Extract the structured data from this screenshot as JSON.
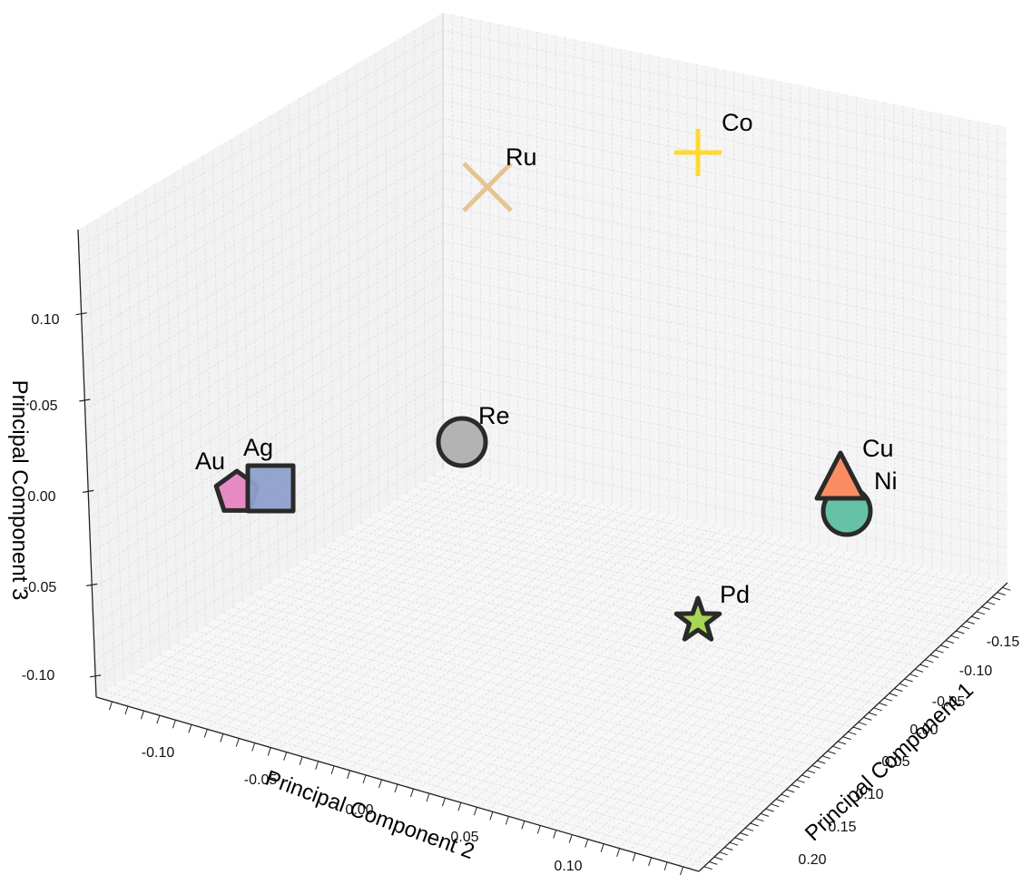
{
  "chart_data": {
    "type": "scatter",
    "projection": "3d",
    "xlabel": "Principal Component 1",
    "ylabel": "Principal Component 2",
    "zlabel": "Principal Component 3",
    "grid": true,
    "xticks": [
      "-0.15",
      "-0.10",
      "-0.05",
      "0.00",
      "0.05",
      "0.10",
      "0.15",
      "0.20"
    ],
    "yticks": [
      "-0.10",
      "-0.05",
      "0.00",
      "0.05",
      "0.10"
    ],
    "zticks": [
      "-0.10",
      "-0.05",
      "0.00",
      "0.05",
      "0.10"
    ],
    "points": [
      {
        "label": "Au",
        "marker": "pentagon",
        "color": "#e78ac3",
        "pc1": 0.04,
        "pc2": -0.13,
        "pc3": 0.0
      },
      {
        "label": "Ag",
        "marker": "square",
        "color": "#8da0cb",
        "pc1": 0.02,
        "pc2": -0.12,
        "pc3": 0.01
      },
      {
        "label": "Re",
        "marker": "circle",
        "color": "#b3b3b3",
        "pc1": -0.03,
        "pc2": -0.05,
        "pc3": 0.05
      },
      {
        "label": "Ru",
        "marker": "x",
        "color": "#e5c494",
        "pc1": -0.08,
        "pc2": -0.06,
        "pc3": 0.14
      },
      {
        "label": "Co",
        "marker": "plus",
        "color": "#ffd92f",
        "pc1": -0.14,
        "pc2": -0.02,
        "pc3": 0.13
      },
      {
        "label": "Cu",
        "marker": "triangle",
        "color": "#fc8d62",
        "pc1": -0.06,
        "pc2": 0.1,
        "pc3": 0.03
      },
      {
        "label": "Ni",
        "marker": "circle",
        "color": "#66c2a5",
        "pc1": -0.07,
        "pc2": 0.1,
        "pc3": 0.0
      },
      {
        "label": "Pd",
        "marker": "star",
        "color": "#a6d854",
        "pc1": 0.09,
        "pc2": 0.03,
        "pc3": -0.05
      }
    ]
  }
}
